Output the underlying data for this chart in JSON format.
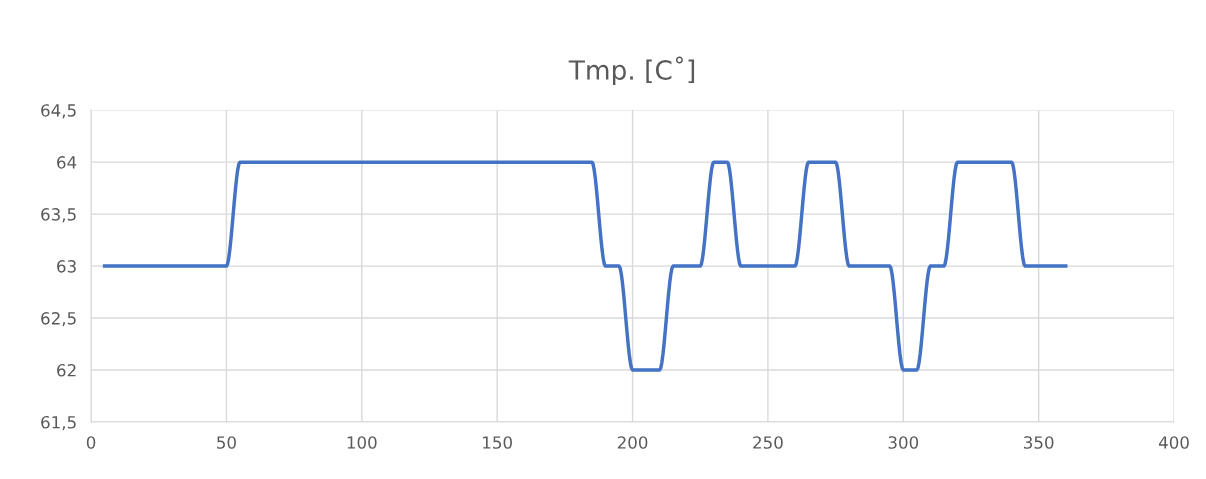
{
  "chart_data": {
    "type": "line",
    "title": "Tmp. [C˚]",
    "x": [
      5,
      10,
      15,
      20,
      25,
      30,
      35,
      40,
      45,
      50,
      55,
      60,
      65,
      70,
      75,
      80,
      85,
      90,
      95,
      100,
      105,
      110,
      115,
      120,
      125,
      130,
      135,
      140,
      145,
      150,
      155,
      160,
      165,
      170,
      175,
      180,
      185,
      190,
      195,
      200,
      205,
      210,
      215,
      220,
      225,
      230,
      235,
      240,
      245,
      250,
      255,
      260,
      265,
      270,
      275,
      280,
      285,
      290,
      295,
      300,
      305,
      310,
      315,
      320,
      325,
      330,
      335,
      340,
      345,
      350,
      355,
      360
    ],
    "series": [
      {
        "color": "#4472c4",
        "values": [
          63,
          63,
          63,
          63,
          63,
          63,
          63,
          63,
          63,
          63,
          64,
          64,
          64,
          64,
          64,
          64,
          64,
          64,
          64,
          64,
          64,
          64,
          64,
          64,
          64,
          64,
          64,
          64,
          64,
          64,
          64,
          64,
          64,
          64,
          64,
          64,
          64,
          63,
          63,
          62,
          62,
          62,
          63,
          63,
          63,
          64,
          64,
          63,
          63,
          63,
          63,
          63,
          64,
          64,
          64,
          63,
          63,
          63,
          63,
          62,
          62,
          63,
          63,
          64,
          64,
          64,
          64,
          64,
          63,
          63,
          63,
          63
        ]
      }
    ],
    "xlim": [
      0,
      400
    ],
    "xticks": [
      0,
      50,
      100,
      150,
      200,
      250,
      300,
      350,
      400
    ],
    "ylim": [
      61.5,
      64.5
    ],
    "yticks": [
      {
        "value": 61.5,
        "label": "61,5"
      },
      {
        "value": 62,
        "label": "62"
      },
      {
        "value": 62.5,
        "label": "62,5"
      },
      {
        "value": 63,
        "label": "63"
      },
      {
        "value": 63.5,
        "label": "63,5"
      },
      {
        "value": 64,
        "label": "64"
      },
      {
        "value": 64.5,
        "label": "64,5"
      }
    ],
    "grid": true,
    "marker": "none",
    "line_style": "solid"
  }
}
